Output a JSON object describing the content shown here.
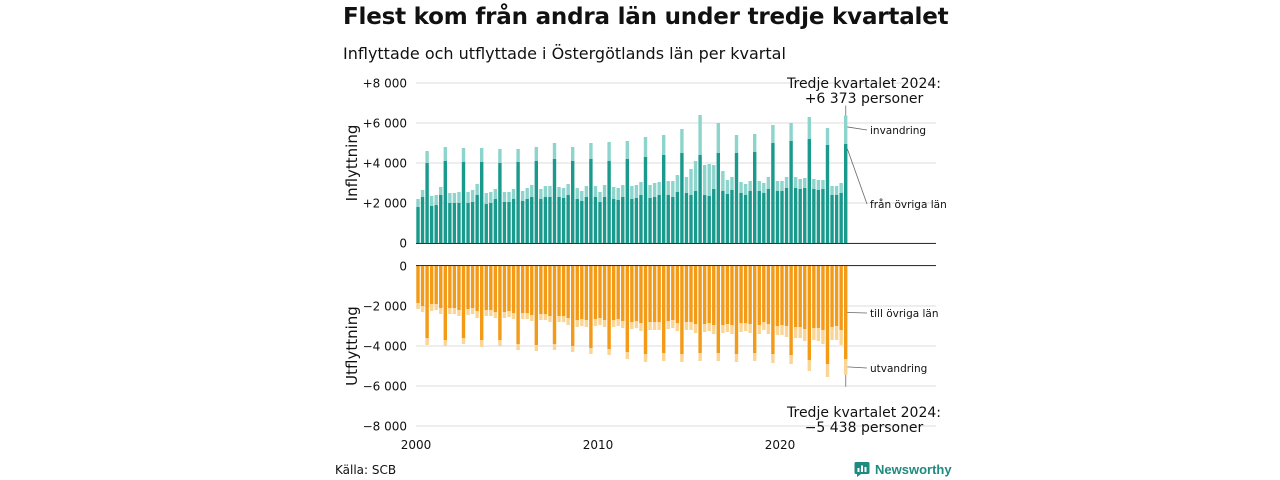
{
  "title": "Flest kom från andra län under tredje kvartalet",
  "subtitle": "Inflyttade och utflyttade i Östergötlands län per kvartal",
  "source": "Källa: SCB",
  "brand": "Newsworthy",
  "colors": {
    "in_domestic": "#1a9a8c",
    "in_immigration": "#8dd4cc",
    "out_domestic": "#f39a17",
    "out_emigration": "#fbd595",
    "grid": "#dedede"
  },
  "chart_data": [
    {
      "type": "bar",
      "stacked": true,
      "ylabel": "Inflyttning",
      "ylim": [
        0,
        8000
      ],
      "yticks": [
        0,
        2000,
        4000,
        6000,
        8000
      ],
      "ytick_labels": [
        "0",
        "+2 000",
        "+4 000",
        "+6 000",
        "+8 000"
      ],
      "x_start": 2000,
      "x_step": 0.25,
      "series": [
        {
          "name": "från övriga län",
          "values": [
            1800,
            2300,
            4000,
            1850,
            1900,
            2400,
            4100,
            2000,
            2000,
            2000,
            4050,
            2000,
            2050,
            2400,
            4050,
            1950,
            2000,
            2200,
            4000,
            2050,
            2050,
            2200,
            4050,
            2100,
            2200,
            2300,
            4100,
            2200,
            2300,
            2300,
            4200,
            2300,
            2250,
            2400,
            4100,
            2200,
            2100,
            2300,
            4200,
            2300,
            2050,
            2300,
            4100,
            2200,
            2150,
            2300,
            4200,
            2200,
            2250,
            2400,
            4300,
            2250,
            2300,
            2400,
            4400,
            2400,
            2300,
            2550,
            4500,
            2500,
            2400,
            2600,
            4400,
            2400,
            2350,
            2700,
            4500,
            2600,
            2450,
            2650,
            4500,
            2500,
            2400,
            2600,
            4550,
            2600,
            2500,
            2700,
            5000,
            2600,
            2600,
            2750,
            5100,
            2750,
            2700,
            2750,
            5200,
            2700,
            2650,
            2700,
            4900,
            2400,
            2400,
            2500,
            4950
          ]
        },
        {
          "name": "invandring",
          "values": [
            400,
            350,
            600,
            500,
            500,
            400,
            700,
            500,
            500,
            550,
            700,
            550,
            600,
            550,
            700,
            550,
            550,
            500,
            700,
            500,
            500,
            500,
            650,
            500,
            550,
            600,
            700,
            500,
            550,
            550,
            800,
            500,
            500,
            550,
            700,
            550,
            500,
            550,
            800,
            550,
            500,
            600,
            950,
            600,
            600,
            600,
            900,
            650,
            650,
            650,
            1000,
            650,
            700,
            650,
            1000,
            700,
            800,
            850,
            1200,
            800,
            1300,
            1500,
            2000,
            1500,
            1600,
            1200,
            1500,
            1000,
            700,
            650,
            900,
            550,
            550,
            500,
            900,
            500,
            500,
            600,
            900,
            500,
            500,
            550,
            900,
            550,
            500,
            500,
            1100,
            500,
            500,
            450,
            850,
            450,
            450,
            500,
            1423
          ]
        }
      ],
      "annotation": [
        "Tredje kvartalet 2024:",
        "+6 373 personer"
      ]
    },
    {
      "type": "bar",
      "stacked": true,
      "ylabel": "Utflyttning",
      "ylim": [
        -8000,
        0
      ],
      "yticks": [
        0,
        -2000,
        -4000,
        -6000,
        -8000
      ],
      "ytick_labels": [
        "0",
        "−2 000",
        "−4 000",
        "−6 000",
        "−8 000"
      ],
      "xticks": [
        2000,
        2010,
        2020
      ],
      "xtick_labels": [
        "2000",
        "2010",
        "2020"
      ],
      "x_start": 2000,
      "x_step": 0.25,
      "series": [
        {
          "name": "till övriga län",
          "values": [
            -1850,
            -2000,
            -3600,
            -1900,
            -1900,
            -2100,
            -3700,
            -2100,
            -2100,
            -2200,
            -3600,
            -2150,
            -2100,
            -2250,
            -3700,
            -2200,
            -2200,
            -2300,
            -3700,
            -2300,
            -2250,
            -2350,
            -3900,
            -2350,
            -2350,
            -2450,
            -3950,
            -2400,
            -2400,
            -2500,
            -3900,
            -2500,
            -2500,
            -2600,
            -4000,
            -2700,
            -2650,
            -2700,
            -4100,
            -2650,
            -2600,
            -2700,
            -4150,
            -2700,
            -2650,
            -2750,
            -4300,
            -2800,
            -2750,
            -2850,
            -4400,
            -2800,
            -2800,
            -2800,
            -4350,
            -2750,
            -2700,
            -2850,
            -4400,
            -2800,
            -2800,
            -2900,
            -4350,
            -2900,
            -2850,
            -2950,
            -4350,
            -2950,
            -2900,
            -2950,
            -4400,
            -2850,
            -2850,
            -2900,
            -4350,
            -2950,
            -2800,
            -2900,
            -4400,
            -3000,
            -2950,
            -3000,
            -4450,
            -3050,
            -3050,
            -3150,
            -4700,
            -3100,
            -3100,
            -3200,
            -4900,
            -3050,
            -3000,
            -3200,
            -4650
          ]
        },
        {
          "name": "utvandring",
          "values": [
            -300,
            -300,
            -350,
            -350,
            -300,
            -300,
            -300,
            -300,
            -300,
            -300,
            -300,
            -300,
            -300,
            -350,
            -350,
            -300,
            -300,
            -300,
            -300,
            -300,
            -300,
            -300,
            -300,
            -300,
            -300,
            -300,
            -300,
            -300,
            -300,
            -300,
            -300,
            -300,
            -300,
            -350,
            -300,
            -350,
            -350,
            -350,
            -300,
            -350,
            -350,
            -350,
            -300,
            -350,
            -350,
            -350,
            -350,
            -350,
            -350,
            -400,
            -400,
            -400,
            -400,
            -400,
            -400,
            -400,
            -400,
            -400,
            -400,
            -400,
            -400,
            -450,
            -400,
            -400,
            -400,
            -450,
            -400,
            -400,
            -400,
            -450,
            -400,
            -450,
            -400,
            -450,
            -400,
            -450,
            -400,
            -500,
            -450,
            -450,
            -500,
            -550,
            -450,
            -550,
            -550,
            -600,
            -550,
            -600,
            -650,
            -700,
            -650,
            -650,
            -700,
            -750,
            -788
          ]
        }
      ],
      "annotation": [
        "Tredje kvartalet 2024:",
        "−5 438 personer"
      ]
    }
  ]
}
